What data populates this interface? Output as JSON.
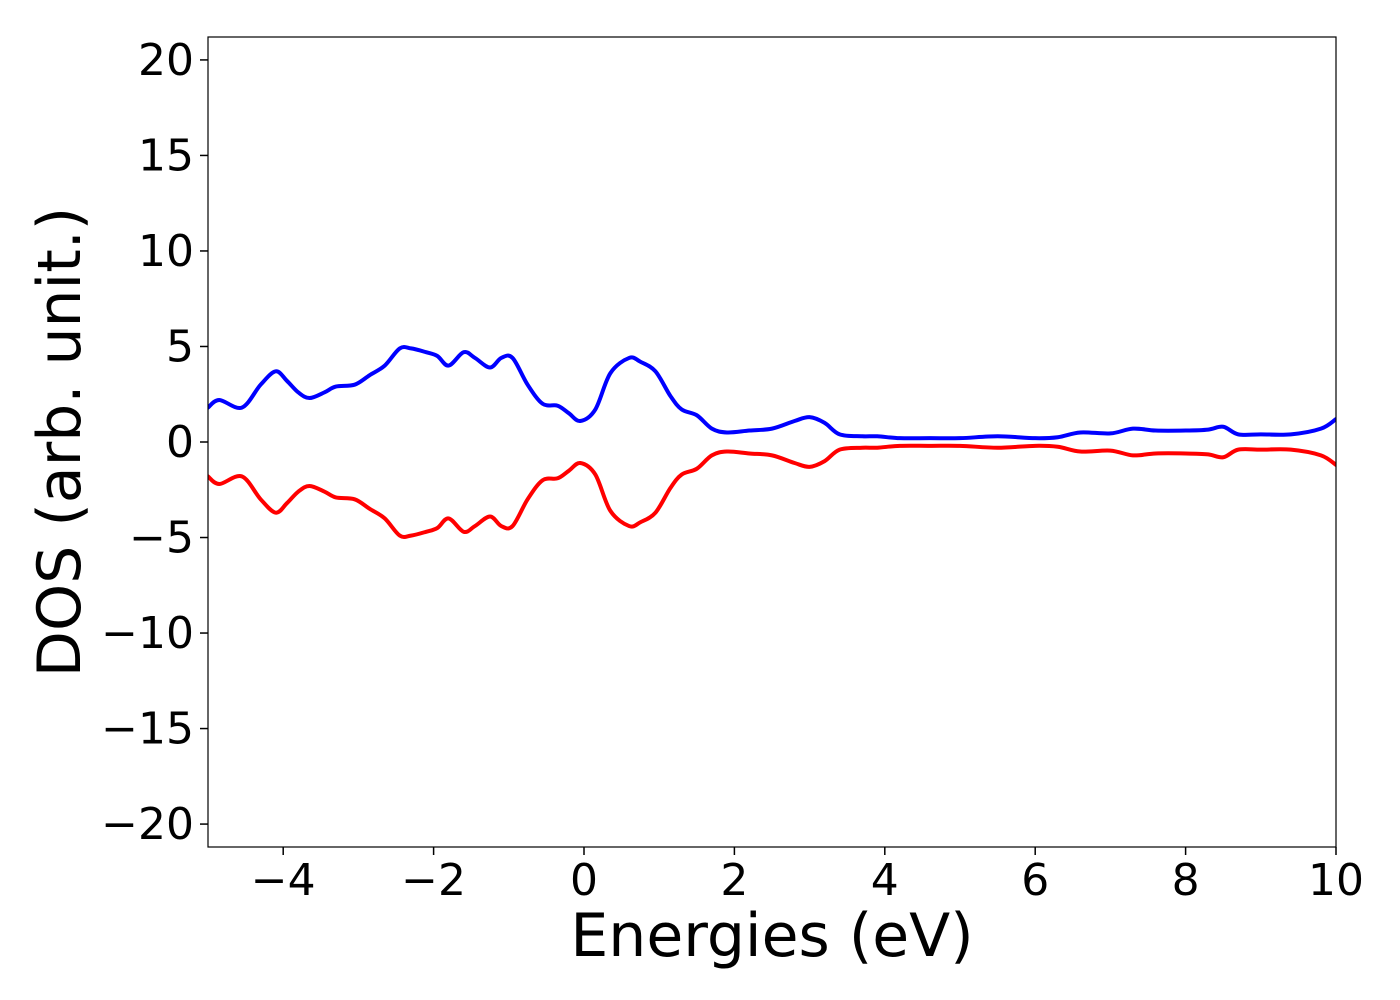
{
  "chart_data": {
    "type": "line",
    "title": "",
    "xlabel": "Energies (eV)",
    "ylabel": "DOS (arb. unit.)",
    "xlim": [
      -5,
      10
    ],
    "ylim": [
      -21.2,
      21.2
    ],
    "xticks": [
      -4,
      -2,
      0,
      2,
      4,
      6,
      8,
      10
    ],
    "xtick_labels": [
      "−4",
      "−2",
      "0",
      "2",
      "4",
      "6",
      "8",
      "10"
    ],
    "yticks": [
      20,
      15,
      10,
      5,
      0,
      -5,
      -10,
      -15,
      -20
    ],
    "ytick_labels": [
      "20",
      "15",
      "10",
      "5",
      "0",
      "−5",
      "−10",
      "−15",
      "−20"
    ],
    "grid": false,
    "series": [
      {
        "color": "#0000ff",
        "x": [
          -5.0,
          -4.85,
          -4.55,
          -4.3,
          -4.1,
          -3.95,
          -3.8,
          -3.65,
          -3.45,
          -3.3,
          -3.05,
          -2.85,
          -2.65,
          -2.45,
          -2.3,
          -2.1,
          -1.95,
          -1.8,
          -1.6,
          -1.45,
          -1.25,
          -1.1,
          -0.95,
          -0.75,
          -0.55,
          -0.35,
          -0.2,
          -0.05,
          0.15,
          0.35,
          0.6,
          0.75,
          0.95,
          1.15,
          1.3,
          1.5,
          1.7,
          1.9,
          2.2,
          2.5,
          2.8,
          3.0,
          3.2,
          3.4,
          3.7,
          3.9,
          4.2,
          4.6,
          5.0,
          5.5,
          6.0,
          6.3,
          6.6,
          7.0,
          7.3,
          7.6,
          8.0,
          8.3,
          8.5,
          8.7,
          9.0,
          9.4,
          9.8,
          10.0
        ],
        "y": [
          1.8,
          2.2,
          1.8,
          3.0,
          3.7,
          3.2,
          2.6,
          2.3,
          2.6,
          2.9,
          3.0,
          3.5,
          4.0,
          4.9,
          4.9,
          4.7,
          4.5,
          4.0,
          4.7,
          4.4,
          3.9,
          4.4,
          4.4,
          3.0,
          2.0,
          1.9,
          1.5,
          1.1,
          1.7,
          3.6,
          4.4,
          4.2,
          3.7,
          2.4,
          1.7,
          1.4,
          0.7,
          0.5,
          0.6,
          0.7,
          1.1,
          1.3,
          1.0,
          0.4,
          0.3,
          0.3,
          0.2,
          0.2,
          0.2,
          0.3,
          0.2,
          0.25,
          0.5,
          0.45,
          0.7,
          0.6,
          0.6,
          0.65,
          0.8,
          0.4,
          0.4,
          0.4,
          0.7,
          1.2
        ]
      },
      {
        "color": "#ff0000",
        "x": [
          -5.0,
          -4.85,
          -4.55,
          -4.3,
          -4.1,
          -3.95,
          -3.8,
          -3.65,
          -3.45,
          -3.3,
          -3.05,
          -2.85,
          -2.65,
          -2.45,
          -2.3,
          -2.1,
          -1.95,
          -1.8,
          -1.6,
          -1.45,
          -1.25,
          -1.1,
          -0.95,
          -0.75,
          -0.55,
          -0.35,
          -0.2,
          -0.05,
          0.15,
          0.35,
          0.6,
          0.75,
          0.95,
          1.15,
          1.3,
          1.5,
          1.7,
          1.9,
          2.2,
          2.5,
          2.8,
          3.0,
          3.2,
          3.4,
          3.7,
          3.9,
          4.2,
          4.6,
          5.0,
          5.5,
          6.0,
          6.3,
          6.6,
          7.0,
          7.3,
          7.6,
          8.0,
          8.3,
          8.5,
          8.7,
          9.0,
          9.4,
          9.8,
          10.0
        ],
        "y": [
          -1.8,
          -2.2,
          -1.8,
          -3.0,
          -3.7,
          -3.2,
          -2.6,
          -2.3,
          -2.6,
          -2.9,
          -3.0,
          -3.5,
          -4.0,
          -4.9,
          -4.9,
          -4.7,
          -4.5,
          -4.0,
          -4.7,
          -4.4,
          -3.9,
          -4.4,
          -4.4,
          -3.0,
          -2.0,
          -1.9,
          -1.5,
          -1.1,
          -1.7,
          -3.6,
          -4.4,
          -4.2,
          -3.7,
          -2.4,
          -1.7,
          -1.4,
          -0.7,
          -0.5,
          -0.6,
          -0.7,
          -1.1,
          -1.3,
          -1.0,
          -0.4,
          -0.3,
          -0.3,
          -0.2,
          -0.2,
          -0.2,
          -0.3,
          -0.2,
          -0.25,
          -0.5,
          -0.45,
          -0.7,
          -0.6,
          -0.6,
          -0.65,
          -0.8,
          -0.4,
          -0.4,
          -0.4,
          -0.7,
          -1.2
        ]
      }
    ]
  }
}
